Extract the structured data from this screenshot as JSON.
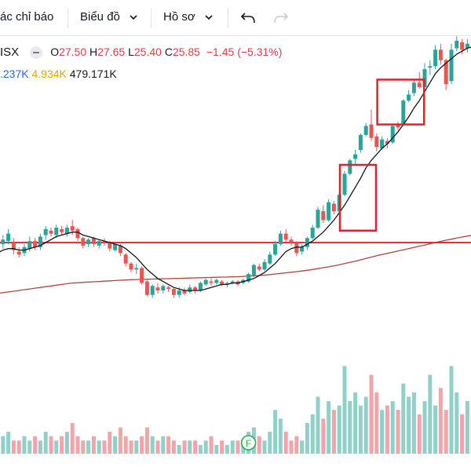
{
  "toolbar": {
    "indicators_label": "ác chỉ báo",
    "chart_type_label": "Biểu đồ",
    "profile_label": "Hồ sơ"
  },
  "legend": {
    "symbol": "ISX",
    "open_label": "O",
    "open_value": "27.50",
    "high_label": "H",
    "high_value": "27.65",
    "low_label": "L",
    "low_value": "25.40",
    "close_label": "C",
    "close_value": "25.85",
    "change": "−1.45 (−5.31%)",
    "vol_a": ".237K",
    "vol_b": "4.934K",
    "vol_c": "479.171K"
  },
  "colors": {
    "up": "#26a69a",
    "down": "#ef5350",
    "ma_fast": "#131722",
    "ma_slow": "#b2443c",
    "hline": "#e0202d",
    "box": "#e0202d",
    "vol_up": "#8fd1c8",
    "vol_down": "#f4a3a8"
  },
  "chart_data": {
    "type": "candlestick",
    "price_range": [
      14,
      35
    ],
    "horizontal_line": 21.4,
    "candles": [
      [
        21.6,
        21.0,
        21.8,
        20.7
      ],
      [
        21.3,
        21.6,
        21.9,
        21.0
      ],
      [
        21.5,
        22.0,
        22.3,
        21.3
      ],
      [
        21.4,
        20.9,
        21.7,
        20.6
      ],
      [
        20.8,
        20.6,
        21.1,
        20.4
      ],
      [
        20.7,
        21.1,
        21.3,
        20.5
      ],
      [
        21.0,
        21.5,
        21.8,
        20.8
      ],
      [
        21.5,
        21.1,
        21.7,
        20.9
      ],
      [
        21.1,
        21.8,
        22.0,
        20.9
      ],
      [
        21.9,
        22.3,
        22.5,
        21.6
      ],
      [
        22.2,
        22.0,
        22.4,
        21.8
      ],
      [
        21.9,
        22.4,
        22.6,
        21.7
      ],
      [
        22.3,
        22.1,
        22.5,
        21.9
      ],
      [
        22.0,
        22.4,
        22.6,
        21.8
      ],
      [
        22.5,
        22.2,
        22.9,
        21.9
      ],
      [
        22.3,
        21.7,
        22.4,
        21.5
      ],
      [
        21.7,
        21.2,
        21.8,
        21.0
      ],
      [
        21.3,
        21.6,
        21.7,
        21.1
      ],
      [
        21.7,
        21.3,
        21.8,
        21.1
      ],
      [
        21.2,
        21.5,
        21.6,
        21.0
      ],
      [
        21.5,
        21.4,
        21.7,
        21.2
      ],
      [
        21.4,
        21.0,
        21.5,
        20.8
      ],
      [
        20.9,
        21.3,
        21.4,
        20.8
      ],
      [
        21.2,
        20.7,
        21.3,
        20.5
      ],
      [
        20.6,
        20.0,
        20.7,
        19.8
      ],
      [
        20.0,
        19.6,
        20.1,
        19.4
      ],
      [
        19.6,
        19.7,
        20.0,
        19.3
      ],
      [
        19.7,
        18.7,
        19.8,
        18.6
      ],
      [
        18.8,
        17.9,
        18.9,
        17.8
      ],
      [
        17.9,
        18.5,
        18.6,
        17.7
      ],
      [
        18.4,
        18.2,
        18.7,
        18.0
      ],
      [
        18.2,
        18.5,
        18.6,
        18.0
      ],
      [
        18.4,
        18.3,
        18.5,
        18.1
      ],
      [
        18.3,
        17.9,
        18.4,
        17.7
      ],
      [
        17.9,
        18.2,
        18.4,
        17.7
      ],
      [
        18.2,
        18.0,
        18.4,
        17.9
      ],
      [
        18.1,
        18.4,
        18.6,
        18.0
      ],
      [
        18.4,
        18.2,
        18.5,
        18.0
      ],
      [
        18.2,
        18.7,
        18.8,
        18.1
      ],
      [
        18.6,
        18.9,
        19.0,
        18.5
      ],
      [
        18.8,
        18.7,
        19.1,
        18.5
      ],
      [
        18.7,
        18.9,
        19.0,
        18.6
      ],
      [
        18.8,
        18.6,
        18.9,
        18.5
      ],
      [
        18.6,
        18.7,
        18.8,
        18.4
      ],
      [
        18.7,
        18.8,
        18.9,
        18.6
      ],
      [
        18.8,
        18.6,
        18.9,
        18.5
      ],
      [
        18.7,
        18.9,
        19.0,
        18.6
      ],
      [
        18.8,
        19.3,
        19.4,
        18.7
      ],
      [
        19.2,
        19.9,
        20.0,
        19.1
      ],
      [
        19.8,
        19.6,
        20.0,
        19.5
      ],
      [
        19.6,
        20.1,
        20.3,
        19.5
      ],
      [
        20.0,
        20.6,
        20.8,
        19.9
      ],
      [
        20.6,
        21.3,
        21.5,
        20.5
      ],
      [
        21.3,
        22.0,
        22.2,
        21.2
      ],
      [
        22.0,
        21.6,
        22.3,
        21.4
      ],
      [
        21.6,
        21.4,
        21.8,
        21.2
      ],
      [
        21.4,
        20.7,
        21.5,
        20.5
      ],
      [
        20.8,
        21.1,
        21.3,
        20.6
      ],
      [
        21.1,
        21.7,
        21.8,
        20.9
      ],
      [
        21.7,
        22.4,
        22.6,
        21.6
      ],
      [
        22.4,
        23.6,
        23.8,
        22.3
      ],
      [
        23.5,
        22.9,
        23.9,
        22.7
      ],
      [
        22.9,
        24.1,
        24.3,
        22.8
      ],
      [
        24.0,
        23.5,
        24.2,
        23.3
      ],
      [
        23.5,
        24.6,
        24.8,
        23.4
      ],
      [
        24.6,
        26.0,
        26.2,
        24.5
      ],
      [
        26.0,
        26.9,
        27.0,
        25.9
      ],
      [
        27.0,
        27.3,
        27.6,
        26.6
      ],
      [
        27.6,
        28.6,
        28.7,
        27.4
      ],
      [
        28.6,
        29.2,
        29.4,
        28.5
      ],
      [
        29.3,
        28.4,
        30.3,
        28.2
      ],
      [
        28.5,
        27.8,
        28.7,
        27.5
      ],
      [
        27.7,
        28.3,
        28.5,
        27.6
      ],
      [
        28.2,
        28.0,
        28.4,
        27.7
      ],
      [
        28.1,
        29.2,
        29.3,
        28.0
      ],
      [
        29.3,
        29.1,
        29.5,
        28.9
      ],
      [
        29.3,
        30.9,
        31.0,
        29.2
      ],
      [
        30.9,
        31.3,
        31.6,
        30.8
      ],
      [
        31.4,
        32.1,
        32.3,
        31.2
      ],
      [
        32.1,
        31.8,
        32.8,
        31.7
      ],
      [
        31.8,
        33.0,
        33.4,
        31.7
      ],
      [
        33.1,
        33.2,
        33.6,
        32.6
      ],
      [
        33.2,
        34.3,
        34.6,
        33.0
      ],
      [
        34.3,
        33.6,
        34.7,
        33.3
      ],
      [
        33.6,
        32.0,
        33.7,
        31.6
      ],
      [
        32.2,
        34.3,
        34.7,
        32.0
      ],
      [
        34.4,
        34.9,
        35.2,
        34.2
      ],
      [
        34.8,
        34.3,
        35.0,
        34.0
      ],
      [
        34.4,
        34.7,
        35.0,
        34.1
      ],
      [
        34.6,
        34.4,
        34.9,
        34.2
      ]
    ],
    "ma_fast": [
      20.7,
      20.9,
      21.0,
      21.0,
      20.9,
      20.9,
      21.0,
      21.1,
      21.2,
      21.4,
      21.6,
      21.8,
      21.9,
      22.0,
      22.1,
      22.1,
      21.9,
      21.8,
      21.7,
      21.6,
      21.5,
      21.4,
      21.3,
      21.2,
      21.0,
      20.7,
      20.4,
      20.0,
      19.6,
      19.3,
      19.0,
      18.8,
      18.6,
      18.4,
      18.3,
      18.2,
      18.2,
      18.2,
      18.2,
      18.3,
      18.4,
      18.5,
      18.6,
      18.6,
      18.7,
      18.7,
      18.8,
      18.9,
      19.0,
      19.2,
      19.4,
      19.7,
      20.0,
      20.4,
      20.8,
      21.0,
      21.1,
      21.1,
      21.3,
      21.5,
      21.8,
      22.1,
      22.5,
      22.9,
      23.4,
      23.9,
      24.5,
      25.1,
      25.7,
      26.4,
      26.9,
      27.3,
      27.7,
      28.0,
      28.4,
      28.8,
      29.3,
      29.8,
      30.4,
      30.9,
      31.5,
      32.1,
      32.7,
      33.1,
      33.4,
      33.7,
      34.0,
      34.2,
      34.4,
      34.5
    ],
    "ma_slow": [
      18.0,
      18.05,
      18.1,
      18.15,
      18.2,
      18.25,
      18.3,
      18.35,
      18.4,
      18.45,
      18.5,
      18.55,
      18.6,
      18.65,
      18.7,
      18.72,
      18.74,
      18.76,
      18.78,
      18.8,
      18.82,
      18.84,
      18.86,
      18.88,
      18.9,
      18.92,
      18.93,
      18.94,
      18.95,
      18.96,
      18.97,
      18.98,
      18.99,
      19.0,
      19.01,
      19.02,
      19.03,
      19.04,
      19.05,
      19.06,
      19.07,
      19.08,
      19.09,
      19.1,
      19.11,
      19.12,
      19.14,
      19.16,
      19.18,
      19.2,
      19.23,
      19.26,
      19.3,
      19.34,
      19.38,
      19.42,
      19.46,
      19.5,
      19.55,
      19.6,
      19.66,
      19.72,
      19.78,
      19.85,
      19.92,
      20.0,
      20.08,
      20.16,
      20.25,
      20.34,
      20.43,
      20.52,
      20.6,
      20.68,
      20.76,
      20.84,
      20.92,
      21.0,
      21.08,
      21.16,
      21.24,
      21.32,
      21.4,
      21.48,
      21.56,
      21.63,
      21.7,
      21.77,
      21.84,
      21.9
    ],
    "volume": [
      3,
      4,
      5,
      3,
      3,
      4,
      3,
      4,
      3,
      5,
      4,
      3,
      4,
      5,
      7,
      4,
      3,
      3,
      4,
      3,
      3,
      5,
      4,
      6,
      4,
      3,
      3,
      4,
      6,
      4,
      3,
      4,
      4,
      3,
      2,
      3,
      3,
      3,
      2,
      3,
      4,
      2,
      3,
      2,
      3,
      3,
      2,
      5,
      6,
      4,
      3,
      5,
      10,
      8,
      5,
      3,
      4,
      3,
      7,
      9,
      13,
      8,
      12,
      10,
      11,
      20,
      12,
      14,
      11,
      13,
      18,
      14,
      10,
      11,
      12,
      10,
      16,
      13,
      14,
      9,
      12,
      18,
      11,
      15,
      10,
      20,
      14,
      9,
      12,
      10
    ],
    "volume_max": 24,
    "boxes": [
      {
        "from_index": 65,
        "to_index": 70,
        "low": 22.2,
        "high": 26.6
      },
      {
        "from_index": 72,
        "to_index": 79,
        "low": 29.3,
        "high": 32.3
      }
    ],
    "markers": [
      {
        "index": 47,
        "label": "F"
      }
    ]
  }
}
